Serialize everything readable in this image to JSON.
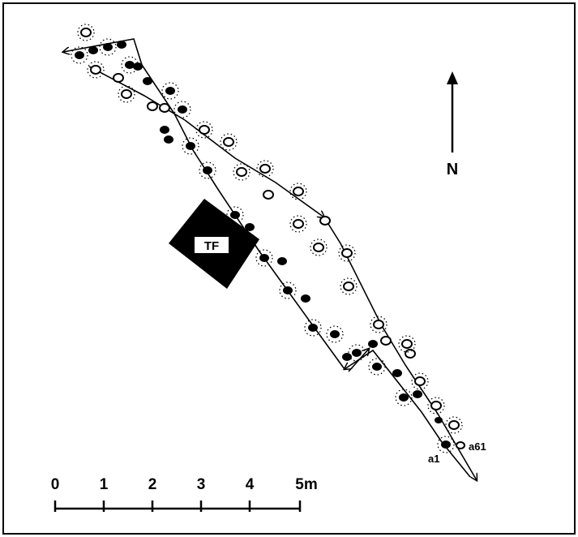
{
  "north_label": "N",
  "block_label": "TF",
  "start_labels": {
    "a": "a1",
    "b": "a61"
  },
  "scale": {
    "ticks": [
      "0",
      "1",
      "2",
      "3",
      "4",
      "5m"
    ]
  },
  "colors": {
    "ink": "#000000",
    "paper": "#ffffff"
  }
}
